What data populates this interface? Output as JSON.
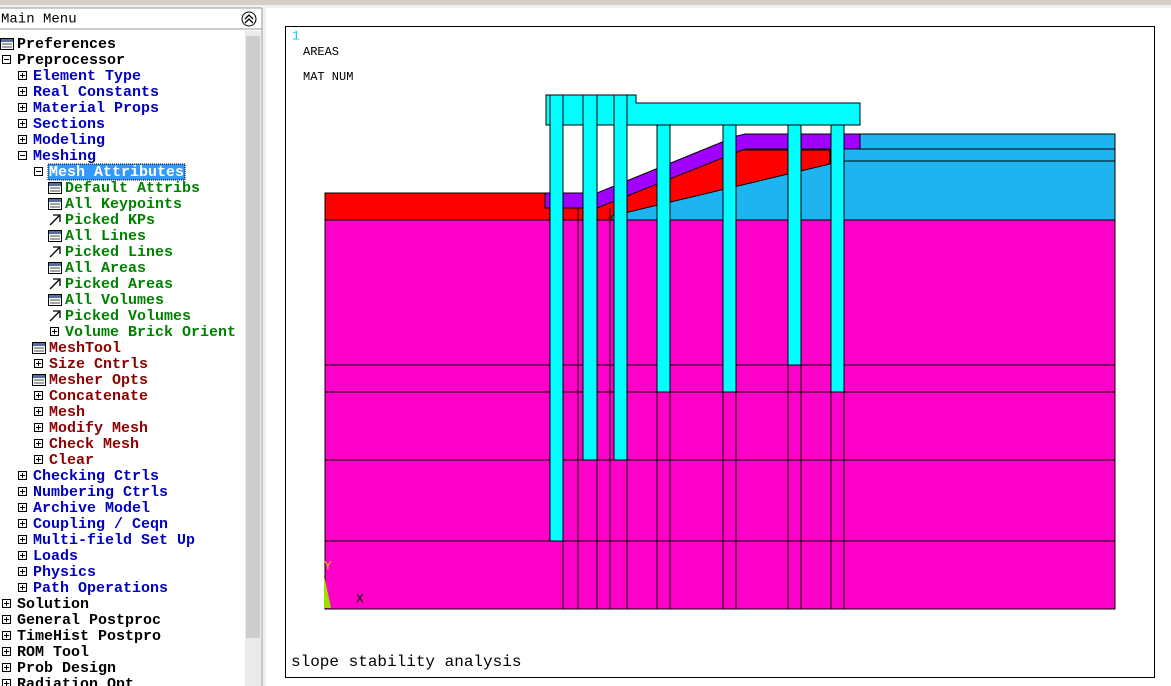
{
  "menu": {
    "title": "Main Menu",
    "items": [
      {
        "label": "Preferences",
        "icon": "dialog"
      },
      {
        "label": "Preprocessor",
        "icon": "minus",
        "children": [
          {
            "label": "Element Type",
            "icon": "plus"
          },
          {
            "label": "Real Constants",
            "icon": "plus"
          },
          {
            "label": "Material Props",
            "icon": "plus"
          },
          {
            "label": "Sections",
            "icon": "plus"
          },
          {
            "label": "Modeling",
            "icon": "plus"
          },
          {
            "label": "Meshing",
            "icon": "minus",
            "children": [
              {
                "label": "Mesh Attributes",
                "icon": "minus",
                "selected": true,
                "children": [
                  {
                    "label": "Default Attribs",
                    "icon": "dialog"
                  },
                  {
                    "label": "All Keypoints",
                    "icon": "dialog"
                  },
                  {
                    "label": "Picked KPs",
                    "icon": "pick"
                  },
                  {
                    "label": "All Lines",
                    "icon": "dialog"
                  },
                  {
                    "label": "Picked Lines",
                    "icon": "pick"
                  },
                  {
                    "label": "All Areas",
                    "icon": "dialog"
                  },
                  {
                    "label": "Picked Areas",
                    "icon": "pick"
                  },
                  {
                    "label": "All Volumes",
                    "icon": "dialog"
                  },
                  {
                    "label": "Picked Volumes",
                    "icon": "pick"
                  },
                  {
                    "label": "Volume Brick Orient",
                    "icon": "plus"
                  }
                ]
              },
              {
                "label": "MeshTool",
                "icon": "dialog"
              },
              {
                "label": "Size Cntrls",
                "icon": "plus"
              },
              {
                "label": "Mesher Opts",
                "icon": "dialog"
              },
              {
                "label": "Concatenate",
                "icon": "plus"
              },
              {
                "label": "Mesh",
                "icon": "plus"
              },
              {
                "label": "Modify Mesh",
                "icon": "plus"
              },
              {
                "label": "Check Mesh",
                "icon": "plus"
              },
              {
                "label": "Clear",
                "icon": "plus"
              }
            ]
          },
          {
            "label": "Checking Ctrls",
            "icon": "plus"
          },
          {
            "label": "Numbering Ctrls",
            "icon": "plus"
          },
          {
            "label": "Archive Model",
            "icon": "plus"
          },
          {
            "label": "Coupling / Ceqn",
            "icon": "plus"
          },
          {
            "label": "Multi-field Set Up",
            "icon": "plus"
          },
          {
            "label": "Loads",
            "icon": "plus"
          },
          {
            "label": "Physics",
            "icon": "plus"
          },
          {
            "label": "Path Operations",
            "icon": "plus"
          }
        ]
      },
      {
        "label": "Solution",
        "icon": "plus"
      },
      {
        "label": "General Postproc",
        "icon": "plus"
      },
      {
        "label": "TimeHist Postpro",
        "icon": "plus"
      },
      {
        "label": "ROM Tool",
        "icon": "plus"
      },
      {
        "label": "Prob Design",
        "icon": "plus"
      },
      {
        "label": "Radiation Opt",
        "icon": "plus"
      }
    ]
  },
  "graphics": {
    "window_number": "1",
    "plot_type": "AREAS",
    "numbering": "MAT NUM",
    "axis_y": "Y",
    "axis_x": "X",
    "title": "slope stability analysis"
  }
}
